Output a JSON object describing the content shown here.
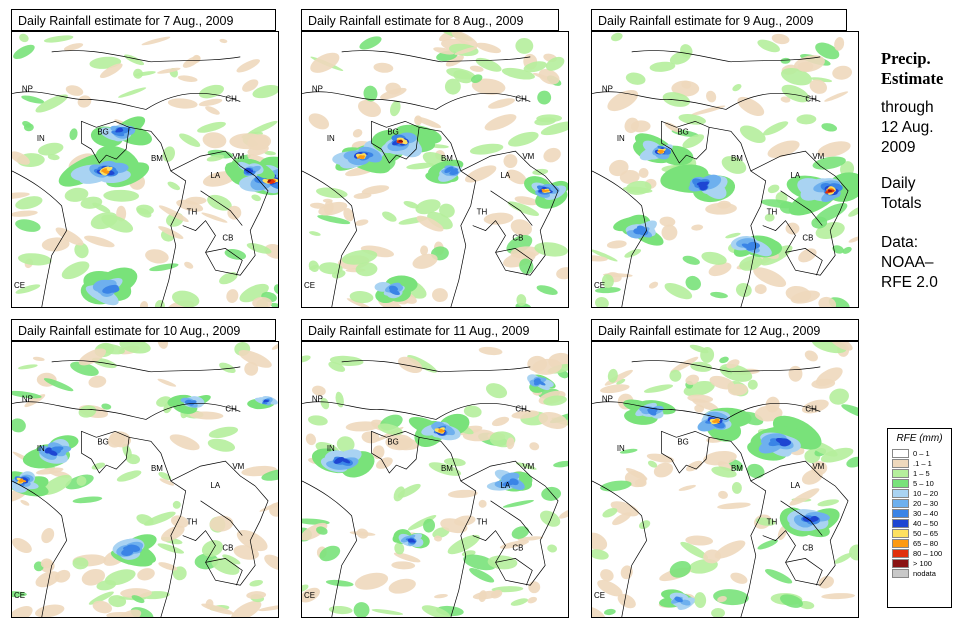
{
  "panels": [
    {
      "title": "Daily Rainfall estimate for  7 Aug., 2009",
      "date": "7 Aug., 2009"
    },
    {
      "title": "Daily Rainfall estimate for  8 Aug., 2009",
      "date": "8 Aug., 2009"
    },
    {
      "title": "Daily Rainfall estimate for  9 Aug., 2009",
      "date": "9 Aug., 2009"
    },
    {
      "title": "Daily Rainfall estimate for  10 Aug., 2009",
      "date": "10 Aug., 2009"
    },
    {
      "title": "Daily Rainfall estimate for  11 Aug., 2009",
      "date": "11 Aug., 2009"
    },
    {
      "title": "Daily Rainfall estimate for  12 Aug., 2009",
      "date": "12 Aug., 2009"
    }
  ],
  "map_labels": {
    "np": "NP",
    "ch": "CH",
    "bg": "BG",
    "in": "IN",
    "bm": "BM",
    "vm": "VM",
    "la": "LA",
    "th": "TH",
    "cb": "CB",
    "ce": "CE"
  },
  "sidebar": {
    "heading1": "Precip.",
    "heading2": "Estimate",
    "through": "through",
    "end_date1": "12 Aug.",
    "end_date2": "2009",
    "daily1": "Daily",
    "daily2": "Totals",
    "data1": "Data:",
    "data2": "NOAA–",
    "data3": "RFE 2.0"
  },
  "legend": {
    "title": "RFE (mm)",
    "items": [
      {
        "label": "0 – 1",
        "color": "#ffffff"
      },
      {
        "label": ".1 – 1",
        "color": "#eed8bc"
      },
      {
        "label": "1 – 5",
        "color": "#b5ee9c"
      },
      {
        "label": "5 – 10",
        "color": "#79e27a"
      },
      {
        "label": "10 – 20",
        "color": "#a9d3f2"
      },
      {
        "label": "20 – 30",
        "color": "#6eb0ee"
      },
      {
        "label": "30 – 40",
        "color": "#3a84e6"
      },
      {
        "label": "40 – 50",
        "color": "#1e46d2"
      },
      {
        "label": "50 – 65",
        "color": "#fde060"
      },
      {
        "label": "65 – 80",
        "color": "#fc9a12"
      },
      {
        "label": "80 – 100",
        "color": "#e0300c"
      },
      {
        "label": "> 100",
        "color": "#8a1414"
      },
      {
        "label": "nodata",
        "color": "#c8c8c8"
      }
    ]
  }
}
